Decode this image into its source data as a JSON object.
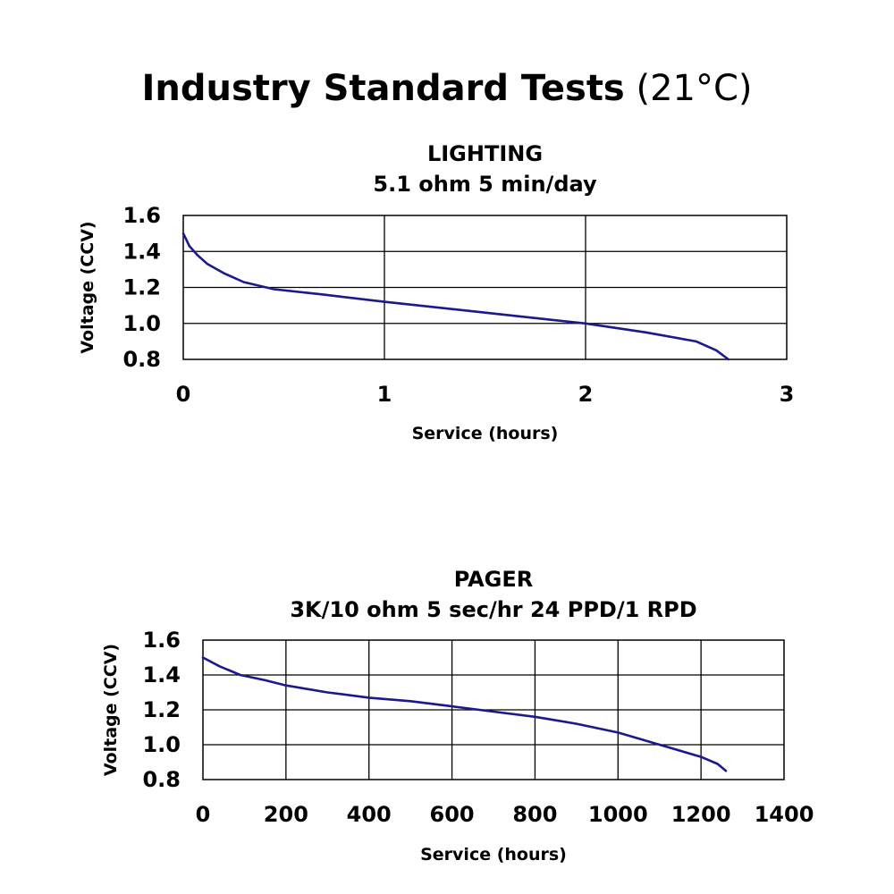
{
  "page": {
    "title": "Industry Standard Tests",
    "title_note": "(21°C)"
  },
  "colors": {
    "series": "#1a1a8a",
    "grid": "#000000"
  },
  "chart_data": [
    {
      "type": "line",
      "title": "LIGHTING",
      "subtitle": "5.1 ohm 5 min/day",
      "xlabel": "Service (hours)",
      "ylabel": "Voltage (CCV)",
      "xlim": [
        0,
        3
      ],
      "ylim": [
        0.8,
        1.6
      ],
      "x_ticks": [
        0,
        1,
        2,
        3
      ],
      "x_tick_labels": [
        "0",
        "1",
        "2",
        "3"
      ],
      "y_ticks": [
        0.8,
        1.0,
        1.2,
        1.4,
        1.6
      ],
      "y_tick_labels": [
        "0.8",
        "1.0",
        "1.2",
        "1.4",
        "1.6"
      ],
      "grid": true,
      "series": [
        {
          "name": "Voltage",
          "x": [
            0,
            0.03,
            0.07,
            0.12,
            0.2,
            0.3,
            0.45,
            0.7,
            1.0,
            1.5,
            2.0,
            2.3,
            2.55,
            2.65,
            2.71
          ],
          "y": [
            1.5,
            1.43,
            1.38,
            1.33,
            1.28,
            1.23,
            1.19,
            1.16,
            1.12,
            1.06,
            1.0,
            0.95,
            0.9,
            0.85,
            0.8
          ]
        }
      ]
    },
    {
      "type": "line",
      "title": "PAGER",
      "subtitle": "3K/10 ohm 5 sec/hr 24 PPD/1 RPD",
      "xlabel": "Service (hours)",
      "ylabel": "Voltage (CCV)",
      "xlim": [
        0,
        1400
      ],
      "ylim": [
        0.8,
        1.6
      ],
      "x_ticks": [
        0,
        200,
        400,
        600,
        800,
        1000,
        1200,
        1400
      ],
      "x_tick_labels": [
        "0",
        "200",
        "400",
        "600",
        "800",
        "1000",
        "1200",
        "1400"
      ],
      "y_ticks": [
        0.8,
        1.0,
        1.2,
        1.4,
        1.6
      ],
      "y_tick_labels": [
        "0.8",
        "1.0",
        "1.2",
        "1.4",
        "1.6"
      ],
      "grid": true,
      "series": [
        {
          "name": "Voltage",
          "x": [
            0,
            40,
            90,
            150,
            200,
            300,
            400,
            500,
            600,
            700,
            800,
            900,
            1000,
            1100,
            1200,
            1240,
            1260
          ],
          "y": [
            1.5,
            1.45,
            1.4,
            1.37,
            1.34,
            1.3,
            1.27,
            1.25,
            1.22,
            1.19,
            1.16,
            1.12,
            1.07,
            1.0,
            0.93,
            0.89,
            0.85
          ]
        }
      ]
    }
  ]
}
